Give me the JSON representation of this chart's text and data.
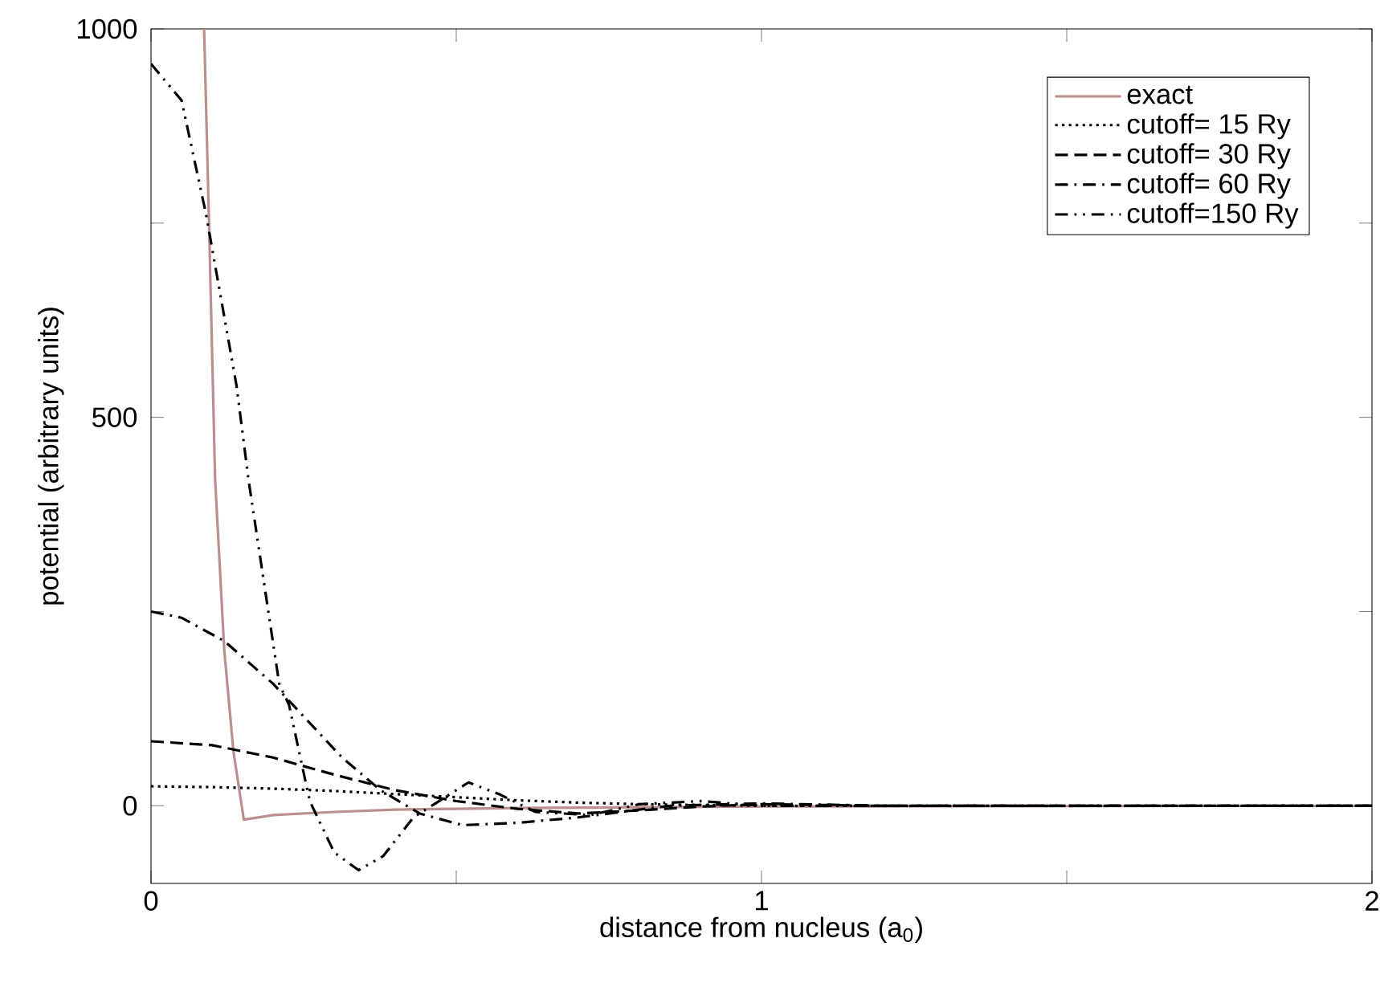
{
  "chart_data": {
    "type": "line",
    "xlabel": "distance from nucleus (a$_{0}$)",
    "ylabel": "potential (arbitrary units)",
    "xlim": [
      0,
      2
    ],
    "ylim": [
      -100,
      1000
    ],
    "xticks": [
      0,
      {
        "value": 0.5,
        "label": null
      },
      1,
      {
        "value": 1.5,
        "label": null
      },
      2
    ],
    "yticks": [
      0,
      {
        "value": 250,
        "label": null
      },
      500,
      {
        "value": 750,
        "label": null
      },
      1000
    ],
    "grid": false,
    "legend": "top right",
    "series": [
      {
        "name": "exact",
        "color": "#bc8f8f",
        "line_style": "solid",
        "x": [
          0.087,
          0.095,
          0.105,
          0.12,
          0.135,
          0.152,
          0.2,
          0.3,
          0.4,
          0.6,
          1.0,
          2.0
        ],
        "values": [
          1000,
          750,
          420,
          200,
          70,
          -18,
          -12,
          -8,
          -5,
          -3,
          -1,
          0
        ]
      },
      {
        "name": "cutoff=  15 Ry",
        "color": "#000000",
        "line_style": "dotted",
        "x": [
          0,
          0.1,
          0.2,
          0.3,
          0.4,
          0.5,
          0.6,
          0.7,
          0.8,
          1.0,
          1.5,
          2.0
        ],
        "values": [
          25,
          24,
          22,
          19,
          15,
          11,
          7,
          4,
          2,
          0,
          0,
          0
        ]
      },
      {
        "name": "cutoff=  30 Ry",
        "color": "#000000",
        "line_style": "dashed",
        "x": [
          0,
          0.1,
          0.2,
          0.3,
          0.4,
          0.5,
          0.6,
          0.7,
          0.8,
          0.9,
          1.0,
          1.2,
          2.0
        ],
        "values": [
          83,
          78,
          62,
          40,
          20,
          6,
          -4,
          -10,
          -6,
          -1,
          2,
          0,
          0
        ]
      },
      {
        "name": "cutoff=  60 Ry",
        "color": "#000000",
        "line_style": "dashdotted",
        "x": [
          0,
          0.05,
          0.12,
          0.2,
          0.313,
          0.376,
          0.44,
          0.51,
          0.6,
          0.7,
          0.85,
          1.0,
          1.2,
          2.0
        ],
        "values": [
          250,
          242,
          212,
          157,
          62,
          20,
          -10,
          -25,
          -22,
          -15,
          0,
          3,
          0,
          0
        ]
      },
      {
        "name": "cutoff=150 Ry",
        "color": "#000000",
        "line_style": "dashdotdotted",
        "x": [
          0,
          0.05,
          0.09,
          0.14,
          0.16,
          0.21,
          0.226,
          0.26,
          0.3,
          0.34,
          0.38,
          0.43,
          0.52,
          0.57,
          0.63,
          0.72,
          0.8,
          0.9,
          1.0,
          1.2,
          2.0
        ],
        "values": [
          955,
          908,
          762,
          541,
          418,
          157,
          130,
          6,
          -60,
          -83,
          -65,
          -15,
          30,
          15,
          -8,
          -12,
          2,
          6,
          0,
          0,
          0
        ]
      }
    ]
  }
}
